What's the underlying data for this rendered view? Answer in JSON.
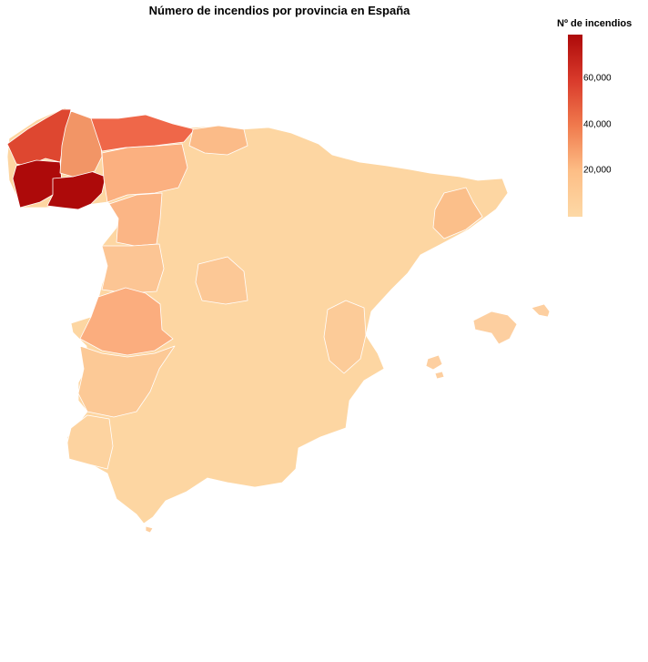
{
  "title": "Número de incendios por provincia en España",
  "legend": {
    "title": "Nº de incendios",
    "ticks": [
      {
        "value": 60000,
        "label": "60,000"
      },
      {
        "value": 40000,
        "label": "40,000"
      },
      {
        "value": 20000,
        "label": "20,000"
      }
    ],
    "range": [
      0,
      79000
    ],
    "colors": [
      "#FDD9A6",
      "#FDBE86",
      "#F07A4D",
      "#D93A2B",
      "#AD0A0A"
    ]
  },
  "chart_data": {
    "type": "choropleth",
    "level": "provincia",
    "approximate_fires": {
      "Pontevedra": 78000,
      "Ourense": 78000,
      "A Coruña": 55000,
      "Asturias": 47000,
      "Lugo": 30000,
      "León": 19000,
      "Zamora": 15000,
      "Cáceres": 20000,
      "Cantabria": 14000,
      "Barcelona": 12000,
      "Badajoz": 10000,
      "Salamanca": 9000,
      "Ávila": 8000,
      "Valencia": 7000
    }
  }
}
